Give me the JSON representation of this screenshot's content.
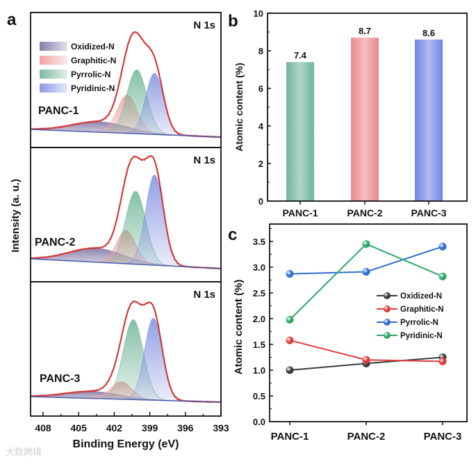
{
  "watermark": "大数跨境",
  "chart_data": [
    {
      "panel_label": "a",
      "type": "line",
      "title": "N 1s",
      "xlabel": "Binding Energy (eV)",
      "ylabel": "Intensity (a. u.)",
      "xlim": [
        408,
        393
      ],
      "xticks": [
        "408",
        "405",
        "402",
        "399",
        "396",
        "393"
      ],
      "legend": [
        "Oxidized-N",
        "Graphitic-N",
        "Pyrrolic-N",
        "Pyridinic-N"
      ],
      "legend_colors": [
        "#7a6fa0",
        "#f09a9a",
        "#6fb596",
        "#7f8fe0"
      ],
      "envelope_color": "#d23a3a",
      "samples": [
        {
          "name": "PANC-1",
          "title": "N 1s",
          "peaks": [
            {
              "component": "Oxidized-N",
              "center_ev": 403.2,
              "sigma_ev": 2.3,
              "height": 15
            },
            {
              "component": "Graphitic-N",
              "center_ev": 400.9,
              "sigma_ev": 0.85,
              "height": 55
            },
            {
              "component": "Pyrrolic-N",
              "center_ev": 400.1,
              "sigma_ev": 0.85,
              "height": 92
            },
            {
              "component": "Pyridinic-N",
              "center_ev": 398.6,
              "sigma_ev": 0.75,
              "height": 88
            }
          ]
        },
        {
          "name": "PANC-2",
          "title": "N 1s",
          "peaks": [
            {
              "component": "Oxidized-N",
              "center_ev": 403.5,
              "sigma_ev": 2.3,
              "height": 20
            },
            {
              "component": "Graphitic-N",
              "center_ev": 401.0,
              "sigma_ev": 0.8,
              "height": 48
            },
            {
              "component": "Pyrrolic-N",
              "center_ev": 400.2,
              "sigma_ev": 0.85,
              "height": 105
            },
            {
              "component": "Pyridinic-N",
              "center_ev": 398.6,
              "sigma_ev": 0.75,
              "height": 130
            }
          ]
        },
        {
          "name": "PANC-3",
          "title": "N 1s",
          "peaks": [
            {
              "component": "Oxidized-N",
              "center_ev": 403.8,
              "sigma_ev": 2.3,
              "height": 10
            },
            {
              "component": "Graphitic-N",
              "center_ev": 401.4,
              "sigma_ev": 0.9,
              "height": 25
            },
            {
              "component": "Pyrrolic-N",
              "center_ev": 400.4,
              "sigma_ev": 0.85,
              "height": 115
            },
            {
              "component": "Pyridinic-N",
              "center_ev": 398.7,
              "sigma_ev": 0.75,
              "height": 118
            }
          ]
        }
      ]
    },
    {
      "panel_label": "b",
      "type": "bar",
      "categories": [
        "PANC-1",
        "PANC-2",
        "PANC-3"
      ],
      "values": [
        7.4,
        8.7,
        8.6
      ],
      "data_labels": [
        "7.4",
        "8.7",
        "8.6"
      ],
      "colors": [
        "#6fb59a",
        "#e88a8f",
        "#6f84e6"
      ],
      "xlabel": "",
      "ylabel": "Atomic content (%)",
      "ylim": [
        0,
        10
      ],
      "yticks": [
        "0",
        "2",
        "4",
        "6",
        "8",
        "10"
      ]
    },
    {
      "panel_label": "c",
      "type": "line",
      "categories": [
        "PANC-1",
        "PANC-2",
        "PANC-3"
      ],
      "series": [
        {
          "name": "Oxidized-N",
          "color": "#3a3a3a",
          "values": [
            1.0,
            1.13,
            1.25
          ]
        },
        {
          "name": "Graphitic-N",
          "color": "#e03c3c",
          "values": [
            1.58,
            1.2,
            1.17
          ]
        },
        {
          "name": "Pyrrolic-N",
          "color": "#2f6fd0",
          "values": [
            2.87,
            2.91,
            3.4
          ]
        },
        {
          "name": "Pyridinic-N",
          "color": "#2fa86a",
          "values": [
            1.98,
            3.45,
            2.82
          ]
        }
      ],
      "xlabel": "",
      "ylabel": "Atomic content (%)",
      "ylim": [
        0,
        3.7
      ],
      "yticks": [
        "0.0",
        "0.5",
        "1.0",
        "1.5",
        "2.0",
        "2.5",
        "3.0",
        "3.5"
      ],
      "legend_position": "center-right"
    }
  ]
}
